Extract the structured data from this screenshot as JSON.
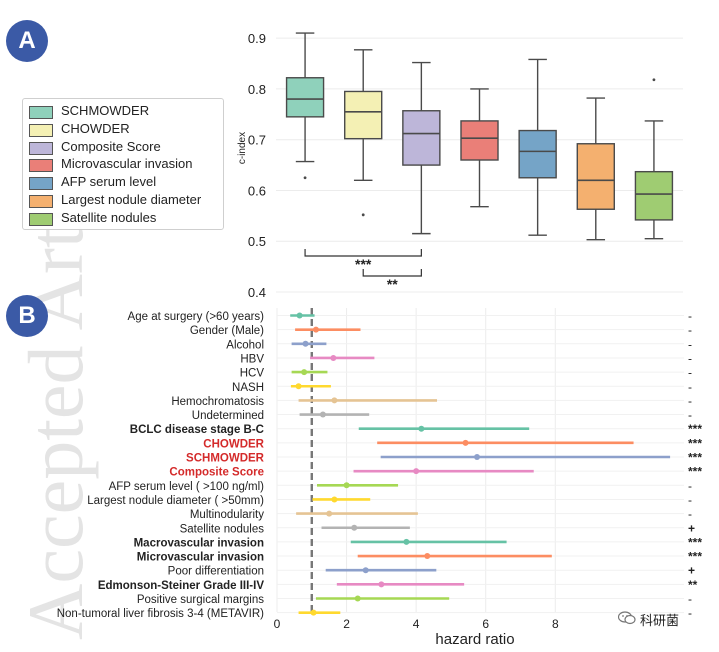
{
  "watermark": {
    "text": "Accepted Article",
    "color": "#e3e3e3"
  },
  "panel_a": {
    "badge": "A"
  },
  "panel_b": {
    "badge": "B"
  },
  "wechat_tag": {
    "text": "科研菌",
    "icon": "wechat-icon"
  },
  "chart_data": [
    {
      "type": "box",
      "ylabel": "c-index",
      "ylim": [
        0.4,
        0.92
      ],
      "yticks": [
        0.4,
        0.5,
        0.6,
        0.7,
        0.8,
        0.9
      ],
      "grid": true,
      "legend_position": "left",
      "series": [
        {
          "name": "SCHMOWDER",
          "color": "#8fd1bb",
          "q1": 0.745,
          "median": 0.78,
          "q3": 0.822,
          "whisker_low": 0.657,
          "whisker_high": 0.91,
          "outliers": [
            0.625
          ]
        },
        {
          "name": "CHOWDER",
          "color": "#f4f0b4",
          "q1": 0.702,
          "median": 0.755,
          "q3": 0.795,
          "whisker_low": 0.62,
          "whisker_high": 0.877,
          "outliers": [
            0.552
          ]
        },
        {
          "name": "Composite Score",
          "color": "#bdb6d9",
          "q1": 0.65,
          "median": 0.712,
          "q3": 0.757,
          "whisker_low": 0.515,
          "whisker_high": 0.852,
          "outliers": []
        },
        {
          "name": "Microvascular invasion",
          "color": "#ea7f78",
          "q1": 0.66,
          "median": 0.703,
          "q3": 0.737,
          "whisker_low": 0.568,
          "whisker_high": 0.8,
          "outliers": []
        },
        {
          "name": "AFP serum level",
          "color": "#75a4c7",
          "q1": 0.625,
          "median": 0.677,
          "q3": 0.718,
          "whisker_low": 0.512,
          "whisker_high": 0.858,
          "outliers": []
        },
        {
          "name": "Largest nodule diameter",
          "color": "#f4b06f",
          "q1": 0.563,
          "median": 0.62,
          "q3": 0.692,
          "whisker_low": 0.503,
          "whisker_high": 0.782,
          "outliers": []
        },
        {
          "name": "Satellite nodules",
          "color": "#9fcc72",
          "q1": 0.542,
          "median": 0.593,
          "q3": 0.637,
          "whisker_low": 0.505,
          "whisker_high": 0.737,
          "outliers": [
            0.818
          ]
        }
      ],
      "significance": [
        {
          "from": 0,
          "to": 2,
          "label": "***"
        },
        {
          "from": 1,
          "to": 2,
          "label": "**"
        }
      ]
    },
    {
      "type": "forest",
      "xlabel": "hazard ratio",
      "xlim": [
        0,
        11.7
      ],
      "xticks": [
        0,
        2,
        4,
        6,
        8
      ],
      "reference_line": 1,
      "grid": true,
      "rows": [
        {
          "label": "Age at surgery (>60 years)",
          "bold": false,
          "red": false,
          "hr": 0.65,
          "lo": 0.38,
          "hi": 1.08,
          "color": "#66c2a5",
          "sig": "-"
        },
        {
          "label": "Gender (Male)",
          "bold": false,
          "red": false,
          "hr": 1.12,
          "lo": 0.52,
          "hi": 2.4,
          "color": "#fc8d62",
          "sig": "-"
        },
        {
          "label": "Alcohol",
          "bold": false,
          "red": false,
          "hr": 0.82,
          "lo": 0.42,
          "hi": 1.42,
          "color": "#8da0cb",
          "sig": "-"
        },
        {
          "label": "HBV",
          "bold": false,
          "red": false,
          "hr": 1.62,
          "lo": 0.95,
          "hi": 2.8,
          "color": "#e78ac3",
          "sig": "-"
        },
        {
          "label": "HCV",
          "bold": false,
          "red": false,
          "hr": 0.78,
          "lo": 0.42,
          "hi": 1.45,
          "color": "#a6d854",
          "sig": "-"
        },
        {
          "label": "NASH",
          "bold": false,
          "red": false,
          "hr": 0.62,
          "lo": 0.4,
          "hi": 1.55,
          "color": "#ffd92f",
          "sig": "-"
        },
        {
          "label": "Hemochromatosis",
          "bold": false,
          "red": false,
          "hr": 1.65,
          "lo": 0.62,
          "hi": 4.6,
          "color": "#e5c494",
          "sig": "-"
        },
        {
          "label": "Undetermined",
          "bold": false,
          "red": false,
          "hr": 1.32,
          "lo": 0.65,
          "hi": 2.65,
          "color": "#b3b3b3",
          "sig": "-"
        },
        {
          "label": "BCLC disease stage B-C",
          "bold": true,
          "red": false,
          "hr": 4.15,
          "lo": 2.35,
          "hi": 7.25,
          "color": "#66c2a5",
          "sig": "***"
        },
        {
          "label": "CHOWDER",
          "bold": true,
          "red": true,
          "hr": 5.42,
          "lo": 2.88,
          "hi": 10.25,
          "color": "#fc8d62",
          "sig": "***"
        },
        {
          "label": "SCHMOWDER",
          "bold": true,
          "red": true,
          "hr": 5.75,
          "lo": 2.98,
          "hi": 11.3,
          "color": "#8da0cb",
          "sig": "***"
        },
        {
          "label": "Composite Score",
          "bold": true,
          "red": true,
          "hr": 4.0,
          "lo": 2.2,
          "hi": 7.38,
          "color": "#e78ac3",
          "sig": "***"
        },
        {
          "label": "AFP serum level ( >100 ng/ml)",
          "bold": false,
          "red": false,
          "hr": 2.0,
          "lo": 1.15,
          "hi": 3.48,
          "color": "#a6d854",
          "sig": "-"
        },
        {
          "label": "Largest nodule diameter ( >50mm)",
          "bold": false,
          "red": false,
          "hr": 1.65,
          "lo": 1.02,
          "hi": 2.68,
          "color": "#ffd92f",
          "sig": "-"
        },
        {
          "label": "Multinodularity",
          "bold": false,
          "red": false,
          "hr": 1.5,
          "lo": 0.55,
          "hi": 4.05,
          "color": "#e5c494",
          "sig": "-"
        },
        {
          "label": "Satellite nodules",
          "bold": false,
          "red": false,
          "hr": 2.22,
          "lo": 1.28,
          "hi": 3.82,
          "color": "#b3b3b3",
          "sig": "+"
        },
        {
          "label": "Macrovascular invasion",
          "bold": true,
          "red": false,
          "hr": 3.72,
          "lo": 2.12,
          "hi": 6.6,
          "color": "#66c2a5",
          "sig": "***"
        },
        {
          "label": "Microvascular invasion",
          "bold": true,
          "red": false,
          "hr": 4.32,
          "lo": 2.32,
          "hi": 7.9,
          "color": "#fc8d62",
          "sig": "***"
        },
        {
          "label": "Poor differentiation",
          "bold": false,
          "red": false,
          "hr": 2.55,
          "lo": 1.4,
          "hi": 4.58,
          "color": "#8da0cb",
          "sig": "+"
        },
        {
          "label": "Edmonson-Steiner Grade III-IV",
          "bold": true,
          "red": false,
          "hr": 3.0,
          "lo": 1.72,
          "hi": 5.38,
          "color": "#e78ac3",
          "sig": "**"
        },
        {
          "label": "Positive surgical margins",
          "bold": false,
          "red": false,
          "hr": 2.32,
          "lo": 1.12,
          "hi": 4.95,
          "color": "#a6d854",
          "sig": "-"
        },
        {
          "label": "Non-tumoral liver fibrosis 3-4 (METAVIR)",
          "bold": false,
          "red": false,
          "hr": 1.05,
          "lo": 0.62,
          "hi": 1.82,
          "color": "#ffd92f",
          "sig": "-"
        }
      ]
    }
  ]
}
